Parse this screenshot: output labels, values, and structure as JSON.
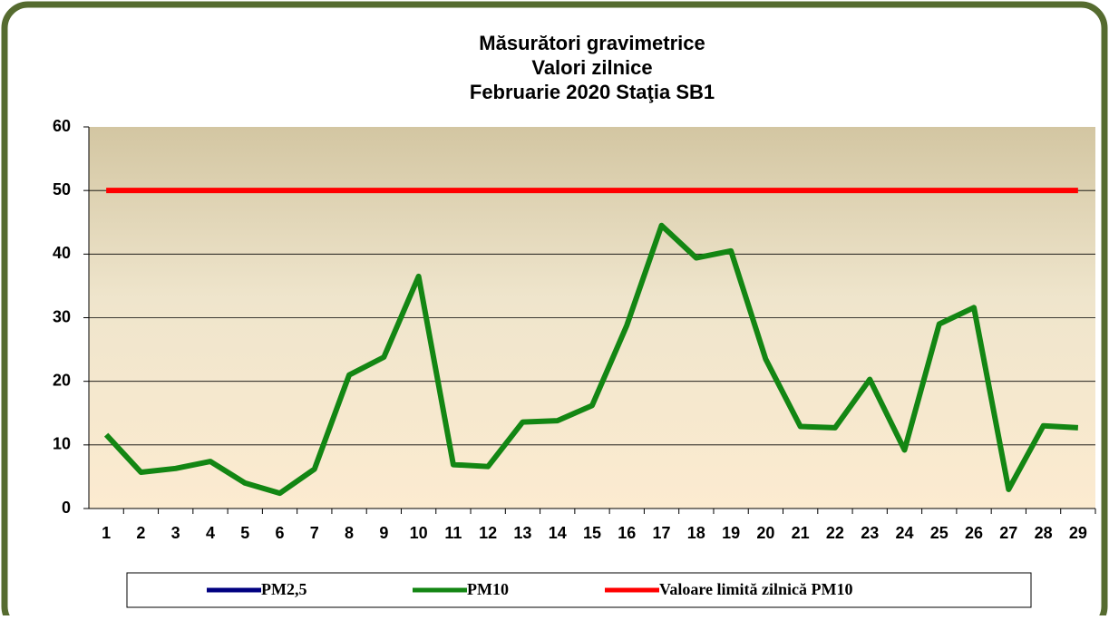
{
  "chart_data": {
    "type": "line",
    "title": [
      "Măsurători gravimetrice",
      "Valori zilnice",
      "Februarie 2020 Staţia SB1"
    ],
    "categories": [
      "1",
      "2",
      "3",
      "4",
      "5",
      "6",
      "7",
      "8",
      "9",
      "10",
      "11",
      "12",
      "13",
      "14",
      "15",
      "16",
      "17",
      "18",
      "19",
      "20",
      "21",
      "22",
      "23",
      "24",
      "25",
      "26",
      "27",
      "28",
      "29"
    ],
    "series": [
      {
        "name": "PM2,5",
        "color": "#000080",
        "values": [
          null,
          null,
          null,
          null,
          null,
          null,
          null,
          null,
          null,
          null,
          null,
          null,
          null,
          null,
          null,
          null,
          null,
          null,
          null,
          null,
          null,
          null,
          null,
          null,
          null,
          null,
          null,
          null,
          null
        ]
      },
      {
        "name": "PM10",
        "color": "#138613",
        "values": [
          11.6,
          5.7,
          6.3,
          7.4,
          4.0,
          2.4,
          6.2,
          21.0,
          23.8,
          36.5,
          6.9,
          6.6,
          13.6,
          13.8,
          16.2,
          28.8,
          44.5,
          39.4,
          40.5,
          23.5,
          12.9,
          12.7,
          20.3,
          9.2,
          29.0,
          31.6,
          3.0,
          13.0,
          12.7
        ]
      },
      {
        "name": "Valoare limită zilnică PM10",
        "color": "#ff0000",
        "values": [
          50,
          50,
          50,
          50,
          50,
          50,
          50,
          50,
          50,
          50,
          50,
          50,
          50,
          50,
          50,
          50,
          50,
          50,
          50,
          50,
          50,
          50,
          50,
          50,
          50,
          50,
          50,
          50,
          50
        ]
      }
    ],
    "ylim": [
      0,
      60
    ],
    "yticks": [
      0,
      10,
      20,
      30,
      40,
      50,
      60
    ],
    "grid": true,
    "legend": "bottom"
  }
}
